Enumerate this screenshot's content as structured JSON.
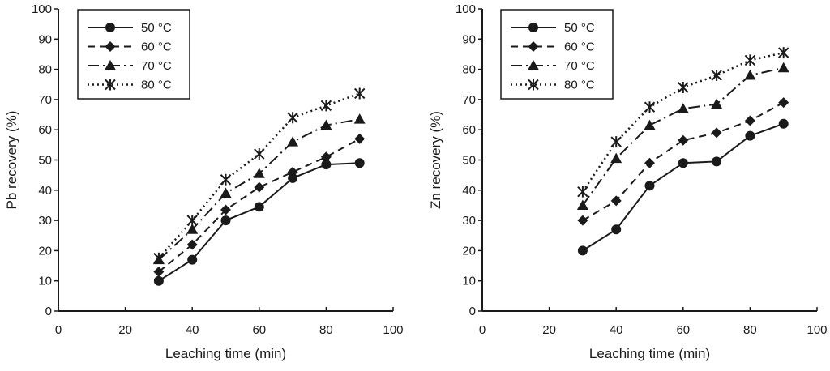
{
  "chart_data": [
    {
      "type": "line",
      "title": "",
      "xlabel": "Leaching time (min)",
      "ylabel": "Pb recovery (%)",
      "xlim": [
        0,
        100
      ],
      "ylim": [
        0,
        100
      ],
      "xticks": [
        0,
        20,
        40,
        60,
        80,
        100
      ],
      "yticks": [
        0,
        10,
        20,
        30,
        40,
        50,
        60,
        70,
        80,
        90,
        100
      ],
      "grid": false,
      "legend_position": "top-left",
      "x": [
        30,
        40,
        50,
        60,
        70,
        80,
        90
      ],
      "series": [
        {
          "name": "50 °C",
          "marker": "circle",
          "line": "solid",
          "values": [
            10,
            17,
            30,
            34.5,
            44,
            48.5,
            49
          ]
        },
        {
          "name": "60 °C",
          "marker": "diamond",
          "line": "dashed",
          "values": [
            13,
            22,
            33.5,
            41,
            46,
            51,
            57
          ]
        },
        {
          "name": "70 °C",
          "marker": "triangle",
          "line": "dashdot",
          "values": [
            17,
            27,
            39,
            45.5,
            56,
            61.5,
            63.5
          ]
        },
        {
          "name": "80 °C",
          "marker": "asterisk",
          "line": "dotted",
          "values": [
            17.5,
            30,
            43.5,
            52,
            64,
            68,
            72
          ]
        }
      ]
    },
    {
      "type": "line",
      "title": "",
      "xlabel": "Leaching time (min)",
      "ylabel": "Zn recovery (%)",
      "xlim": [
        0,
        100
      ],
      "ylim": [
        0,
        100
      ],
      "xticks": [
        0,
        20,
        40,
        60,
        80,
        100
      ],
      "yticks": [
        0,
        10,
        20,
        30,
        40,
        50,
        60,
        70,
        80,
        90,
        100
      ],
      "grid": false,
      "legend_position": "top-left",
      "x": [
        30,
        40,
        50,
        60,
        70,
        80,
        90
      ],
      "series": [
        {
          "name": "50 °C",
          "marker": "circle",
          "line": "solid",
          "values": [
            20,
            27,
            41.5,
            49,
            49.5,
            58,
            62
          ]
        },
        {
          "name": "60 °C",
          "marker": "diamond",
          "line": "dashed",
          "values": [
            30,
            36.5,
            49,
            56.5,
            59,
            63,
            69
          ]
        },
        {
          "name": "70 °C",
          "marker": "triangle",
          "line": "dashdot",
          "values": [
            35,
            50.5,
            61.5,
            67,
            68.5,
            78,
            80.5
          ]
        },
        {
          "name": "80 °C",
          "marker": "asterisk",
          "line": "dotted",
          "values": [
            39.5,
            56,
            67.5,
            74,
            78,
            83,
            85.5
          ]
        }
      ]
    }
  ],
  "colors": {
    "ink": "#1a1a1a",
    "background": "#ffffff"
  }
}
